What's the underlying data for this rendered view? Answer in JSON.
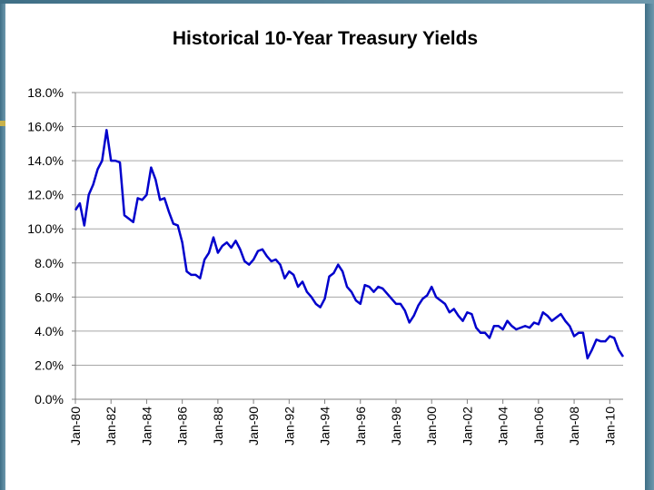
{
  "chart_data": {
    "type": "line",
    "title": "Historical 10-Year Treasury Yields",
    "color": "#0000cc",
    "grid": true,
    "xlim": [
      1980,
      2010.75
    ],
    "ylim": [
      0,
      18
    ],
    "yticks": [
      {
        "value": 0,
        "label": "0.0%"
      },
      {
        "value": 2,
        "label": "2.0%"
      },
      {
        "value": 4,
        "label": "4.0%"
      },
      {
        "value": 6,
        "label": "6.0%"
      },
      {
        "value": 8,
        "label": "8.0%"
      },
      {
        "value": 10,
        "label": "10.0%"
      },
      {
        "value": 12,
        "label": "12.0%"
      },
      {
        "value": 14,
        "label": "14.0%"
      },
      {
        "value": 16,
        "label": "16.0%"
      },
      {
        "value": 18,
        "label": "18.0%"
      }
    ],
    "xticks": [
      {
        "value": 1980,
        "label": "Jan-80"
      },
      {
        "value": 1982,
        "label": "Jan-82"
      },
      {
        "value": 1984,
        "label": "Jan-84"
      },
      {
        "value": 1986,
        "label": "Jan-86"
      },
      {
        "value": 1988,
        "label": "Jan-88"
      },
      {
        "value": 1990,
        "label": "Jan-90"
      },
      {
        "value": 1992,
        "label": "Jan-92"
      },
      {
        "value": 1994,
        "label": "Jan-94"
      },
      {
        "value": 1996,
        "label": "Jan-96"
      },
      {
        "value": 1998,
        "label": "Jan-98"
      },
      {
        "value": 2000,
        "label": "Jan-00"
      },
      {
        "value": 2002,
        "label": "Jan-02"
      },
      {
        "value": 2004,
        "label": "Jan-04"
      },
      {
        "value": 2006,
        "label": "Jan-06"
      },
      {
        "value": 2008,
        "label": "Jan-08"
      },
      {
        "value": 2010,
        "label": "Jan-10"
      }
    ],
    "x": [
      1980,
      1980.25,
      1980.5,
      1980.75,
      1981,
      1981.25,
      1981.5,
      1981.75,
      1982,
      1982.25,
      1982.5,
      1982.75,
      1983,
      1983.25,
      1983.5,
      1983.75,
      1984,
      1984.25,
      1984.5,
      1984.75,
      1985,
      1985.25,
      1985.5,
      1985.75,
      1986,
      1986.25,
      1986.5,
      1986.75,
      1987,
      1987.25,
      1987.5,
      1987.75,
      1988,
      1988.25,
      1988.5,
      1988.75,
      1989,
      1989.25,
      1989.5,
      1989.75,
      1990,
      1990.25,
      1990.5,
      1990.75,
      1991,
      1991.25,
      1991.5,
      1991.75,
      1992,
      1992.25,
      1992.5,
      1992.75,
      1993,
      1993.25,
      1993.5,
      1993.75,
      1994,
      1994.25,
      1994.5,
      1994.75,
      1995,
      1995.25,
      1995.5,
      1995.75,
      1996,
      1996.25,
      1996.5,
      1996.75,
      1997,
      1997.25,
      1997.5,
      1997.75,
      1998,
      1998.25,
      1998.5,
      1998.75,
      1999,
      1999.25,
      1999.5,
      1999.75,
      2000,
      2000.25,
      2000.5,
      2000.75,
      2001,
      2001.25,
      2001.5,
      2001.75,
      2002,
      2002.25,
      2002.5,
      2002.75,
      2003,
      2003.25,
      2003.5,
      2003.75,
      2004,
      2004.25,
      2004.5,
      2004.75,
      2005,
      2005.25,
      2005.5,
      2005.75,
      2006,
      2006.25,
      2006.5,
      2006.75,
      2007,
      2007.25,
      2007.5,
      2007.75,
      2008,
      2008.25,
      2008.5,
      2008.75,
      2009,
      2009.25,
      2009.5,
      2009.75,
      2010,
      2010.25,
      2010.5,
      2010.75
    ],
    "values": [
      11.1,
      11.5,
      10.2,
      12.0,
      12.6,
      13.5,
      14.0,
      15.8,
      14.0,
      14.0,
      13.9,
      10.8,
      10.6,
      10.4,
      11.8,
      11.7,
      12.0,
      13.6,
      12.9,
      11.7,
      11.8,
      11.0,
      10.3,
      10.2,
      9.2,
      7.5,
      7.3,
      7.3,
      7.1,
      8.2,
      8.6,
      9.5,
      8.6,
      9.0,
      9.2,
      8.9,
      9.3,
      8.8,
      8.1,
      7.9,
      8.2,
      8.7,
      8.8,
      8.4,
      8.1,
      8.2,
      7.9,
      7.1,
      7.5,
      7.3,
      6.6,
      6.9,
      6.3,
      6.0,
      5.6,
      5.4,
      5.9,
      7.2,
      7.4,
      7.9,
      7.5,
      6.6,
      6.3,
      5.8,
      5.6,
      6.7,
      6.6,
      6.3,
      6.6,
      6.5,
      6.2,
      5.9,
      5.6,
      5.6,
      5.2,
      4.5,
      4.9,
      5.5,
      5.9,
      6.1,
      6.6,
      6.0,
      5.8,
      5.6,
      5.1,
      5.3,
      4.9,
      4.6,
      5.1,
      5.0,
      4.2,
      3.9,
      3.9,
      3.6,
      4.3,
      4.3,
      4.1,
      4.6,
      4.3,
      4.1,
      4.2,
      4.3,
      4.2,
      4.5,
      4.4,
      5.1,
      4.9,
      4.6,
      4.8,
      5.0,
      4.6,
      4.3,
      3.7,
      3.9,
      3.9,
      2.4,
      2.9,
      3.5,
      3.4,
      3.4,
      3.7,
      3.6,
      2.9,
      2.5
    ]
  }
}
